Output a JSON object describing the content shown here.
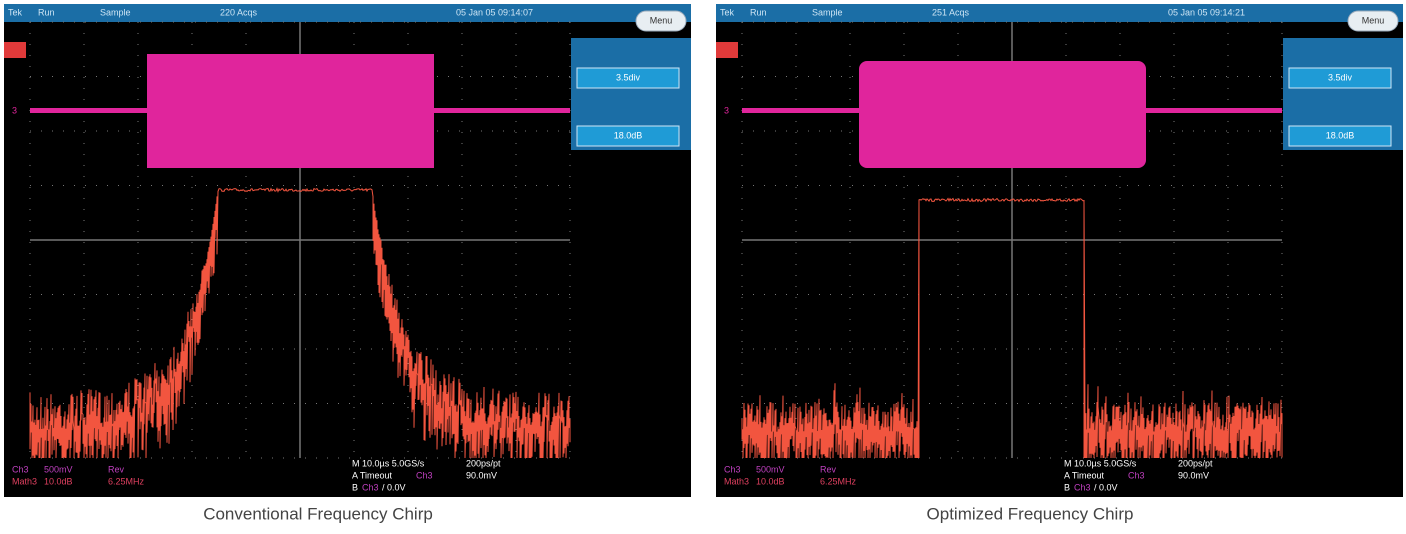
{
  "panels": [
    {
      "status": {
        "brand": "Tek",
        "mode": "Run",
        "acq_mode": "Sample",
        "acqs": "220 Acqs",
        "timestamp": "05 Jan 05 09:14:07"
      },
      "menu": "Menu",
      "ch_marker": "3",
      "side_buttons": [
        "3.5div",
        "18.0dB"
      ],
      "readouts": {
        "ch": "Ch3",
        "ch_scale": "500mV",
        "ch_mode": "Rev",
        "math": "Math3",
        "math_scale": "10.0dB",
        "math_freq": "6.25MHz",
        "timebase": "M 10.0µs 5.0GS/s",
        "resolution": "200ps/pt",
        "trigger": "A  Timeout",
        "trigger_src": "Ch3",
        "trigger_level": "90.0mV",
        "b_trigger": "B",
        "b_src": "Ch3",
        "b_level": "/  0.0V"
      },
      "caption": "Conventional Frequency Chirp"
    },
    {
      "status": {
        "brand": "Tek",
        "mode": "Run",
        "acq_mode": "Sample",
        "acqs": "251 Acqs",
        "timestamp": "05 Jan 05 09:14:21"
      },
      "menu": "Menu",
      "ch_marker": "3",
      "side_buttons": [
        "3.5div",
        "18.0dB"
      ],
      "readouts": {
        "ch": "Ch3",
        "ch_scale": "500mV",
        "ch_mode": "Rev",
        "math": "Math3",
        "math_scale": "10.0dB",
        "math_freq": "6.25MHz",
        "timebase": "M 10.0µs 5.0GS/s",
        "resolution": "200ps/pt",
        "trigger": "A  Timeout",
        "trigger_src": "Ch3",
        "trigger_level": "90.0mV",
        "b_trigger": "B",
        "b_src": "Ch3",
        "b_level": "/  0.0V"
      },
      "caption": "Optimized Frequency Chirp"
    }
  ]
}
